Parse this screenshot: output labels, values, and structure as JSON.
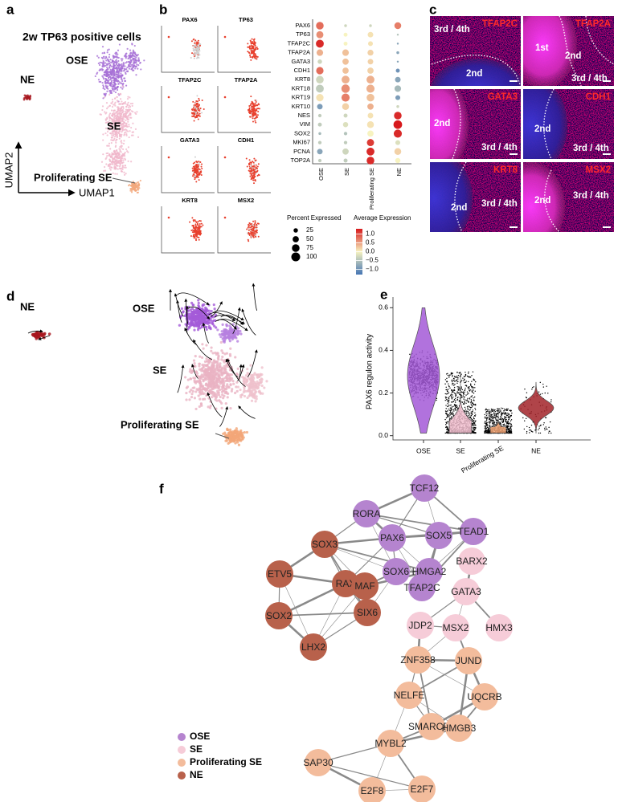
{
  "panel_labels": [
    "a",
    "b",
    "c",
    "d",
    "e",
    "f"
  ],
  "umap": {
    "title": "2w TP63 positive cells",
    "clusters": [
      "OSE",
      "NE",
      "SE",
      "Proliferating SE"
    ],
    "cluster_colors": [
      "#a66fd6",
      "#a8161e",
      "#f0b6cb",
      "#f2a77c"
    ],
    "x_label": "UMAP1",
    "y_label": "UMAP2"
  },
  "feature_plots": [
    "PAX6",
    "TP63",
    "TFAP2C",
    "TFAP2A",
    "GATA3",
    "CDH1",
    "KRT8",
    "MSX2"
  ],
  "dot_plot": {
    "type": "dot",
    "genes": [
      "PAX6",
      "TP63",
      "TFAP2C",
      "TFAP2A",
      "GATA3",
      "CDH1",
      "KRT8",
      "KRT18",
      "KRT19",
      "KRT10",
      "NES",
      "VIM",
      "SOX2",
      "MKI67",
      "PCNA",
      "TOP2A"
    ],
    "groups": [
      "OSE",
      "SE",
      "Proliferating SE",
      "NE"
    ],
    "percent": [
      [
        75,
        10,
        10,
        60
      ],
      [
        65,
        20,
        40,
        5
      ],
      [
        80,
        20,
        30,
        5
      ],
      [
        55,
        55,
        45,
        10
      ],
      [
        25,
        50,
        40,
        5
      ],
      [
        70,
        50,
        50,
        20
      ],
      [
        75,
        80,
        80,
        40
      ],
      [
        80,
        90,
        85,
        55
      ],
      [
        70,
        85,
        75,
        30
      ],
      [
        40,
        60,
        50,
        10
      ],
      [
        15,
        20,
        40,
        75
      ],
      [
        20,
        35,
        60,
        95
      ],
      [
        10,
        15,
        50,
        85
      ],
      [
        15,
        15,
        65,
        30
      ],
      [
        40,
        50,
        80,
        60
      ],
      [
        15,
        20,
        75,
        35
      ]
    ],
    "expression": [
      [
        0.8,
        -0.3,
        -0.3,
        0.7
      ],
      [
        0.6,
        0.0,
        0.1,
        -0.5
      ],
      [
        1.2,
        0.0,
        0.1,
        -0.8
      ],
      [
        0.4,
        0.3,
        0.2,
        -0.8
      ],
      [
        -0.3,
        0.3,
        0.2,
        -0.8
      ],
      [
        0.8,
        0.3,
        0.2,
        -1.0
      ],
      [
        -0.3,
        0.4,
        0.4,
        -0.8
      ],
      [
        -0.4,
        0.6,
        0.4,
        -0.6
      ],
      [
        0.1,
        0.7,
        0.3,
        -0.9
      ],
      [
        -0.9,
        0.2,
        0.4,
        -0.3
      ],
      [
        -0.4,
        -0.3,
        0.1,
        1.2
      ],
      [
        -0.4,
        -0.2,
        0.1,
        1.3
      ],
      [
        -0.6,
        -0.5,
        0.0,
        1.2
      ],
      [
        -0.4,
        -0.4,
        1.1,
        -0.2
      ],
      [
        -0.8,
        -0.3,
        1.2,
        0.2
      ],
      [
        -0.4,
        -0.4,
        1.2,
        0.0
      ]
    ],
    "size_legend": {
      "title": "Percent Expressed",
      "ticks": [
        25,
        50,
        75,
        100
      ]
    },
    "color_legend": {
      "title": "Average Expression",
      "lim": [
        -1.3,
        1.3
      ],
      "colors": [
        "#4575b4",
        "#f7f3c0",
        "#d7191c"
      ],
      "ticks": [
        {
          "value": 1.0,
          "label": "1.0"
        },
        0.5,
        {
          "value": 0.0,
          "label": "0.0"
        },
        {
          "value": -0.5,
          "label": "−0.5"
        },
        {
          "value": -1.0,
          "label": "−1.0"
        }
      ]
    }
  },
  "images": [
    {
      "marker": "TFAP2C",
      "regions": [
        "3rd / 4th",
        "2nd"
      ]
    },
    {
      "marker": "TFAP2A",
      "regions": [
        "1st",
        "2nd",
        "3rd / 4th"
      ]
    },
    {
      "marker": "GATA3",
      "regions": [
        "2nd",
        "3rd / 4th"
      ]
    },
    {
      "marker": "CDH1",
      "regions": [
        "2nd",
        "3rd / 4th"
      ]
    },
    {
      "marker": "KRT8",
      "regions": [
        "2nd",
        "3rd / 4th"
      ]
    },
    {
      "marker": "MSX2",
      "regions": [
        "2nd",
        "3rd / 4th"
      ]
    }
  ],
  "velocity": {
    "clusters": [
      "NE",
      "OSE",
      "SE",
      "Proliferating SE"
    ]
  },
  "violin": {
    "type": "violin",
    "y_label": "PAX6 regulon activity",
    "categories": [
      "OSE",
      "SE",
      "Proliferating SE",
      "NE"
    ],
    "colors": [
      "#a45ad8",
      "#f3c0d0",
      "#f4a676",
      "#a3242a"
    ],
    "medians": [
      0.28,
      0.05,
      0.02,
      0.13
    ],
    "maxima": [
      0.6,
      0.3,
      0.13,
      0.25
    ],
    "ylim": [
      -0.02,
      0.62
    ],
    "yticks": [
      {
        "value": 0.0,
        "label": "0.0"
      },
      0.2,
      0.4,
      0.6
    ]
  },
  "network": {
    "legend": [
      {
        "name": "OSE",
        "color": "#b584cf"
      },
      {
        "name": "SE",
        "color": "#f6ccd8"
      },
      {
        "name": "Proliferating SE",
        "color": "#f3bc9c"
      },
      {
        "name": "NE",
        "color": "#b8614b"
      }
    ],
    "nodes": [
      {
        "label": "TCF12",
        "group": 0
      },
      {
        "label": "RORA",
        "group": 0
      },
      {
        "label": "PAX6",
        "group": 0
      },
      {
        "label": "SOX5",
        "group": 0
      },
      {
        "label": "TEAD1",
        "group": 0
      },
      {
        "label": "SOX3",
        "group": 3
      },
      {
        "label": "SOX6",
        "group": 0
      },
      {
        "label": "HMGA2",
        "group": 0
      },
      {
        "label": "ETV5",
        "group": 3
      },
      {
        "label": "RAX",
        "group": 3
      },
      {
        "label": "MAF",
        "group": 3
      },
      {
        "label": "TFAP2C",
        "group": 0
      },
      {
        "label": "BARX2",
        "group": 1
      },
      {
        "label": "SOX2",
        "group": 3
      },
      {
        "label": "SIX6",
        "group": 3
      },
      {
        "label": "LHX2",
        "group": 3
      },
      {
        "label": "GATA3",
        "group": 1
      },
      {
        "label": "JDP2",
        "group": 1
      },
      {
        "label": "MSX2",
        "group": 1
      },
      {
        "label": "HMX3",
        "group": 1
      },
      {
        "label": "ZNF358",
        "group": 2
      },
      {
        "label": "JUND",
        "group": 2
      },
      {
        "label": "NELFE",
        "group": 2
      },
      {
        "label": "UQCRB",
        "group": 2
      },
      {
        "label": "SMARCB1",
        "group": 2
      },
      {
        "label": "HMGB3",
        "group": 2
      },
      {
        "label": "MYBL2",
        "group": 2
      },
      {
        "label": "SAP30",
        "group": 2
      },
      {
        "label": "E2F8",
        "group": 2
      },
      {
        "label": "E2F7",
        "group": 2
      }
    ]
  }
}
